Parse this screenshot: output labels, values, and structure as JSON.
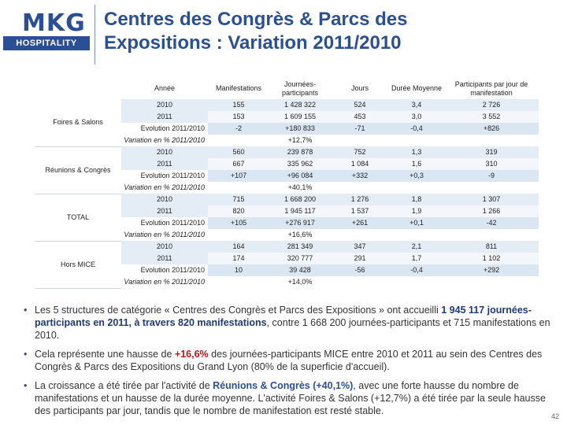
{
  "logo": {
    "brand": "MKG",
    "sub": "HOSPITALITY"
  },
  "title": {
    "line1": "Centres des Congrès & Parcs des",
    "line2": "Expositions : Variation 2011/2010"
  },
  "table": {
    "headers": [
      "Année",
      "Manifestations",
      "Journées-participants",
      "Jours",
      "Durée Moyenne",
      "Participants par jour de manifestation"
    ],
    "groups": [
      {
        "name": "Foires & Salons",
        "rows": [
          [
            "2010",
            "155",
            "1 428 322",
            "524",
            "3,4",
            "2 726"
          ],
          [
            "2011",
            "153",
            "1 609 155",
            "453",
            "3,0",
            "3 552"
          ],
          [
            "Evolution 2011/2010",
            "-2",
            "+180 833",
            "-71",
            "-0,4",
            "+826"
          ]
        ],
        "variation_label": "Variation en % 2011/2010",
        "variation_value": "+12,7%"
      },
      {
        "name": "Réunions & Congrès",
        "rows": [
          [
            "2010",
            "560",
            "239 878",
            "752",
            "1,3",
            "319"
          ],
          [
            "2011",
            "667",
            "335 962",
            "1 084",
            "1,6",
            "310"
          ],
          [
            "Evolution 2011/2010",
            "+107",
            "+96 084",
            "+332",
            "+0,3",
            "-9"
          ]
        ],
        "variation_label": "Variation en % 2011/2010",
        "variation_value": "+40,1%"
      },
      {
        "name": "TOTAL",
        "rows": [
          [
            "2010",
            "715",
            "1 668 200",
            "1 276",
            "1,8",
            "1 307"
          ],
          [
            "2011",
            "820",
            "1 945 117",
            "1 537",
            "1,9",
            "1 266"
          ],
          [
            "Evolution 2011/2010",
            "+105",
            "+276 917",
            "+261",
            "+0,1",
            "-42"
          ]
        ],
        "variation_label": "Variation en % 2011/2010",
        "variation_value": "+16,6%"
      },
      {
        "name": "Hors MICE",
        "rows": [
          [
            "2010",
            "164",
            "281 349",
            "347",
            "2,1",
            "811"
          ],
          [
            "2011",
            "174",
            "320 777",
            "291",
            "1,7",
            "1 102"
          ],
          [
            "Evolution 2011/2010",
            "10",
            "39 428",
            "-56",
            "-0,4",
            "+292"
          ]
        ],
        "variation_label": "Variation en % 2011/2010",
        "variation_value": "+14,0%"
      }
    ]
  },
  "bullets": {
    "b1": {
      "t1": "Les 5 structures de catégorie « Centres des Congrès et Parcs des Expositions » ont accueilli ",
      "t2": "1 945 117 journées-participants en 2011, à travers 820 manifestations",
      "t3": ", contre 1 668 200 journées-participants et 715 manifestations en 2010."
    },
    "b2": {
      "t1": "Cela représente une hausse de ",
      "t2": "+16,6%",
      "t3": " des journées-participants MICE entre 2010 et 2011 au sein des Centres des Congrès & Parcs des Expositions du Grand Lyon (80% de la superficie d'accueil)."
    },
    "b3": {
      "t1": "La croissance a été tirée par l'activité de ",
      "t2": "Réunions & Congrès (+40,1%)",
      "t3": ", avec une forte hausse du nombre de manifestations et un hausse de la durée moyenne. L'activité Foires & Salons (+12,7%) a été tirée par la seule hausse des participants par jour, tandis que le nombre de manifestation est resté stable."
    }
  },
  "page_number": "42",
  "colors": {
    "brand": "#2b4f96",
    "highlight_red": "#c0161a",
    "row_fill": "#e4ecf6"
  }
}
